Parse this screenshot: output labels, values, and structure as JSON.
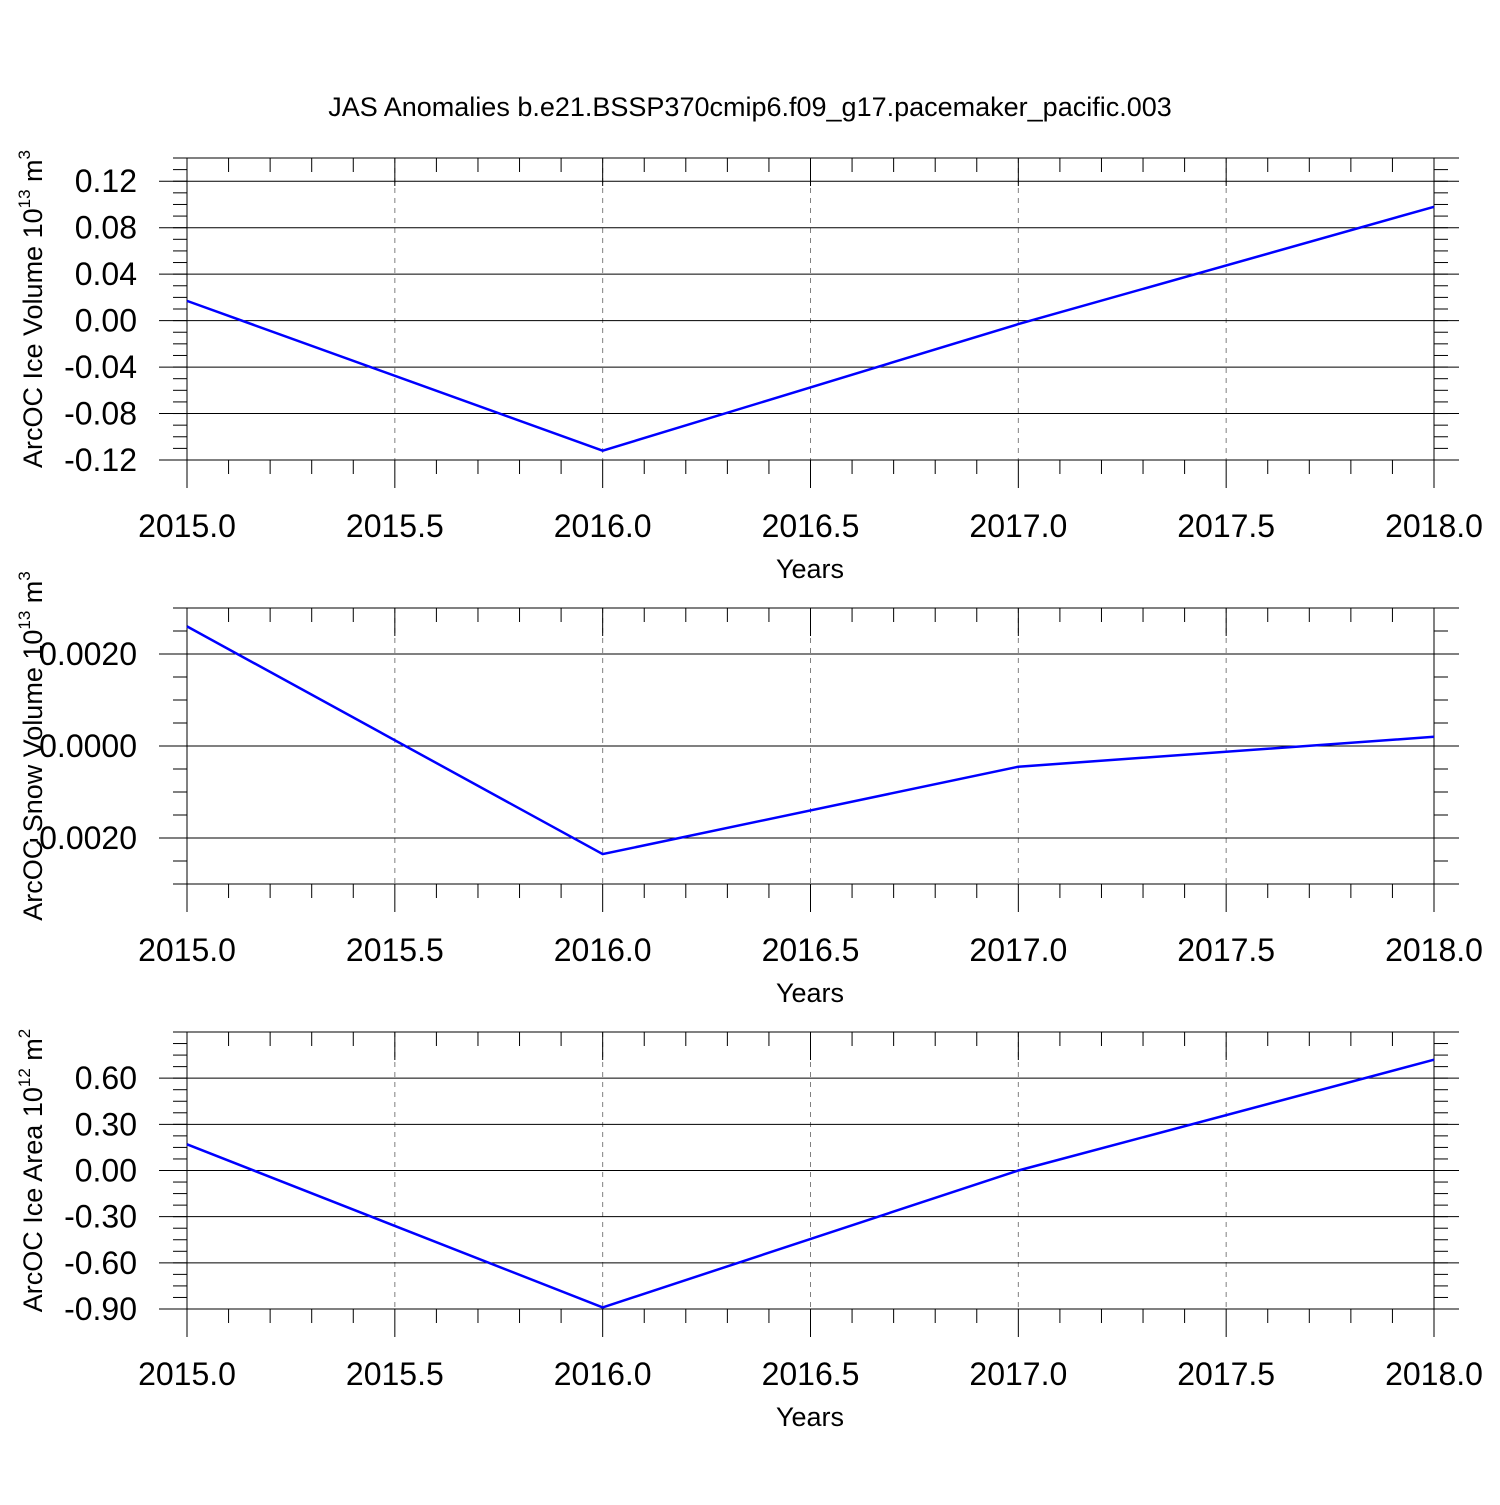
{
  "title": "JAS Anomalies b.e21.BSSP370cmip6.f09_g17.pacemaker_pacific.003",
  "colors": {
    "series": "#0000ff",
    "axis": "#000000",
    "grid": "#808080"
  },
  "chart_data": [
    {
      "type": "line",
      "ylabel": "ArcOC Ice Volume 10",
      "ylabel_exp": "13",
      "ylabel_unit": " m",
      "ylabel_unit_exp": "3",
      "xlabel": "Years",
      "xlim": [
        2015.0,
        2018.0
      ],
      "ylim": [
        -0.12,
        0.14
      ],
      "xticks": [
        "2015.0",
        "2015.5",
        "2016.0",
        "2016.5",
        "2017.0",
        "2017.5",
        "2018.0"
      ],
      "yticks": [
        "-0.12",
        "-0.08",
        "-0.04",
        "0.00",
        "0.04",
        "0.08",
        "0.12"
      ],
      "grid": "vertical dashed",
      "x": [
        2015,
        2016,
        2017,
        2018
      ],
      "y": [
        0.017,
        -0.112,
        -0.003,
        0.098
      ]
    },
    {
      "type": "line",
      "ylabel": "ArcOC Snow Volume 10",
      "ylabel_exp": "13",
      "ylabel_unit": " m",
      "ylabel_unit_exp": "3",
      "xlabel": "Years",
      "xlim": [
        2015.0,
        2018.0
      ],
      "ylim": [
        -0.003,
        0.003
      ],
      "xticks": [
        "2015.0",
        "2015.5",
        "2016.0",
        "2016.5",
        "2017.0",
        "2017.5",
        "2018.0"
      ],
      "yticks": [
        "-0.0020",
        "0.0000",
        "0.0020"
      ],
      "grid": "vertical dashed",
      "x": [
        2015,
        2016,
        2017,
        2018
      ],
      "y": [
        0.0026,
        -0.00235,
        -0.00045,
        0.0002
      ]
    },
    {
      "type": "line",
      "ylabel": "ArcOC Ice Area 10",
      "ylabel_exp": "12",
      "ylabel_unit": " m",
      "ylabel_unit_exp": "2",
      "xlabel": "Years",
      "xlim": [
        2015.0,
        2018.0
      ],
      "ylim": [
        -0.9,
        0.9
      ],
      "xticks": [
        "2015.0",
        "2015.5",
        "2016.0",
        "2016.5",
        "2017.0",
        "2017.5",
        "2018.0"
      ],
      "yticks": [
        "-0.90",
        "-0.60",
        "-0.30",
        "0.00",
        "0.30",
        "0.60"
      ],
      "grid": "vertical dashed",
      "x": [
        2015,
        2016,
        2017,
        2018
      ],
      "y": [
        0.17,
        -0.89,
        0.0,
        0.72
      ]
    }
  ]
}
